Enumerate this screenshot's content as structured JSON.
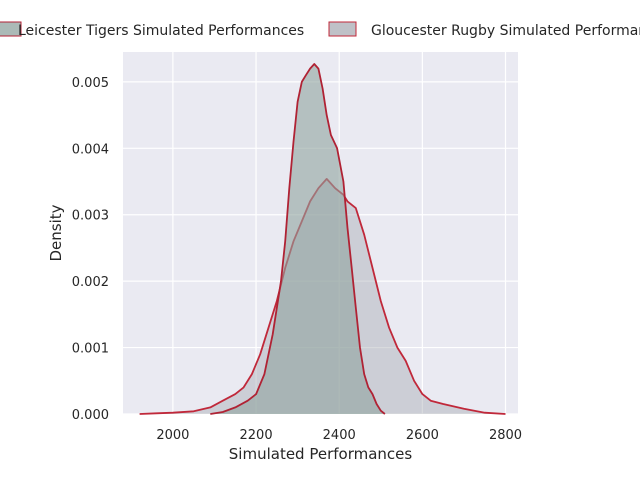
{
  "chart_data": {
    "type": "area",
    "title": "",
    "xlabel": "Simulated Performances",
    "ylabel": "Density",
    "xlim": [
      1880,
      2830
    ],
    "ylim": [
      0,
      0.00545
    ],
    "xticks": [
      2000,
      2200,
      2400,
      2600,
      2800
    ],
    "yticks": [
      0.0,
      0.001,
      0.002,
      0.003,
      0.004,
      0.005
    ],
    "ytick_labels": [
      "0.000",
      "0.001",
      "0.002",
      "0.003",
      "0.004",
      "0.005"
    ],
    "grid": true,
    "legend_position": "top, above plot",
    "series": [
      {
        "name": "Leicester Tigers Simulated Performances",
        "fill": "#8fa39f",
        "fill_opacity": 0.6,
        "line": "#b02234",
        "points": [
          [
            2090,
            0.0
          ],
          [
            2120,
            3e-05
          ],
          [
            2150,
            0.0001
          ],
          [
            2180,
            0.0002
          ],
          [
            2200,
            0.0003
          ],
          [
            2220,
            0.0006
          ],
          [
            2240,
            0.0012
          ],
          [
            2260,
            0.002
          ],
          [
            2270,
            0.0026
          ],
          [
            2280,
            0.0034
          ],
          [
            2290,
            0.0041
          ],
          [
            2300,
            0.0047
          ],
          [
            2310,
            0.005
          ],
          [
            2320,
            0.0051
          ],
          [
            2330,
            0.0052
          ],
          [
            2340,
            0.00527
          ],
          [
            2350,
            0.0052
          ],
          [
            2360,
            0.0049
          ],
          [
            2370,
            0.0045
          ],
          [
            2380,
            0.0042
          ],
          [
            2395,
            0.004
          ],
          [
            2410,
            0.0035
          ],
          [
            2420,
            0.0028
          ],
          [
            2430,
            0.0022
          ],
          [
            2440,
            0.0016
          ],
          [
            2450,
            0.001
          ],
          [
            2460,
            0.0006
          ],
          [
            2470,
            0.0004
          ],
          [
            2480,
            0.0003
          ],
          [
            2490,
            0.00015
          ],
          [
            2500,
            5e-05
          ],
          [
            2510,
            0.0
          ]
        ]
      },
      {
        "name": "Gloucester Rugby Simulated Performances",
        "fill": "#a9acb4",
        "fill_opacity": 0.45,
        "line": "#c0283a",
        "points": [
          [
            1920,
            0.0
          ],
          [
            1960,
            1e-05
          ],
          [
            2000,
            2e-05
          ],
          [
            2050,
            4e-05
          ],
          [
            2090,
            0.0001
          ],
          [
            2120,
            0.0002
          ],
          [
            2150,
            0.0003
          ],
          [
            2170,
            0.0004
          ],
          [
            2190,
            0.0006
          ],
          [
            2210,
            0.0009
          ],
          [
            2230,
            0.0013
          ],
          [
            2250,
            0.0017
          ],
          [
            2270,
            0.0022
          ],
          [
            2290,
            0.0026
          ],
          [
            2310,
            0.0029
          ],
          [
            2330,
            0.0032
          ],
          [
            2350,
            0.0034
          ],
          [
            2370,
            0.00354
          ],
          [
            2390,
            0.0034
          ],
          [
            2410,
            0.0033
          ],
          [
            2420,
            0.0032
          ],
          [
            2440,
            0.0031
          ],
          [
            2460,
            0.0027
          ],
          [
            2480,
            0.0022
          ],
          [
            2500,
            0.0017
          ],
          [
            2520,
            0.0013
          ],
          [
            2540,
            0.001
          ],
          [
            2560,
            0.0008
          ],
          [
            2580,
            0.0005
          ],
          [
            2600,
            0.0003
          ],
          [
            2620,
            0.0002
          ],
          [
            2650,
            0.00015
          ],
          [
            2700,
            8e-05
          ],
          [
            2750,
            2e-05
          ],
          [
            2800,
            0.0
          ]
        ]
      }
    ]
  }
}
